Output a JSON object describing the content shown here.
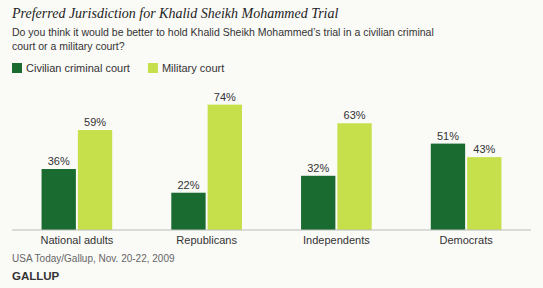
{
  "chart_data": {
    "type": "bar",
    "title": "Preferred Jurisdiction for Khalid Sheikh Mohammed Trial",
    "subtitle": "Do you think it would be better to hold Khalid Sheikh Mohammed’s trial in a civilian criminal\ncourt or a military court?",
    "categories": [
      "National adults",
      "Republicans",
      "Independents",
      "Democrats"
    ],
    "series": [
      {
        "name": "Civilian criminal court",
        "color": "#1a6b30",
        "values": [
          36,
          22,
          32,
          51
        ],
        "value_labels": [
          "36%",
          "22%",
          "32%",
          "51%"
        ]
      },
      {
        "name": "Military court",
        "color": "#c5e04a",
        "values": [
          59,
          74,
          63,
          43
        ],
        "value_labels": [
          "59%",
          "74%",
          "63%",
          "43%"
        ]
      }
    ],
    "ylim": [
      0,
      85
    ],
    "data_labels": true,
    "tick_labels": "x",
    "grid": false,
    "legend": "upper left",
    "annotations": [
      "USA Today/Gallup, Nov. 20-22, 2009",
      "GALLUP"
    ]
  }
}
